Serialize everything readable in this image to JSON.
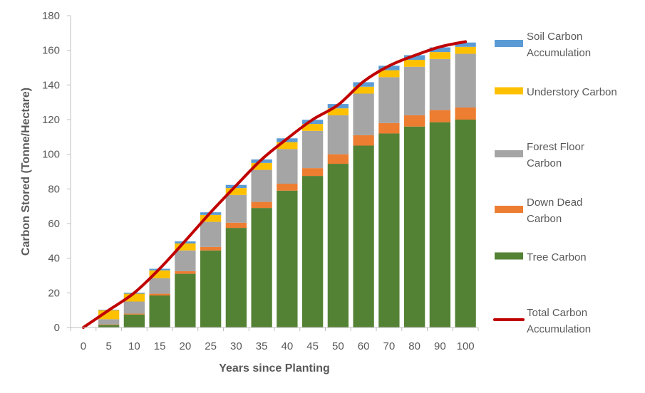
{
  "chart_data": {
    "type": "bar",
    "stacked": true,
    "title": "",
    "xlabel": "Years since Planting",
    "ylabel": "Carbon Stored (Tonne/Hectare)",
    "ylim": [
      0,
      180
    ],
    "yticks": [
      "0",
      "20",
      "40",
      "60",
      "80",
      "100",
      "120",
      "140",
      "160",
      "180"
    ],
    "categories": [
      "0",
      "5",
      "10",
      "15",
      "20",
      "25",
      "30",
      "35",
      "40",
      "45",
      "50",
      "60",
      "70",
      "80",
      "90",
      "100"
    ],
    "series": [
      {
        "name": "Tree Carbon",
        "color": "#548235",
        "values": [
          0,
          1.5,
          7.5,
          18.5,
          31,
          44.5,
          57.5,
          69,
          79,
          87.5,
          94.5,
          105,
          112,
          116,
          118.5,
          120
        ]
      },
      {
        "name": "Down Dead Carbon",
        "color": "#ED7D31",
        "values": [
          0,
          0.3,
          0.5,
          1,
          1.5,
          2,
          3,
          3.5,
          4,
          4.5,
          5.5,
          6,
          6,
          6.5,
          7,
          7
        ]
      },
      {
        "name": "Forest Floor Carbon",
        "color": "#A5A5A5",
        "values": [
          0,
          3,
          7,
          9,
          12,
          14.5,
          16,
          18.5,
          20,
          21.5,
          22.5,
          24,
          26.5,
          28,
          29.5,
          31
        ]
      },
      {
        "name": "Understory Carbon",
        "color": "#FFC000",
        "values": [
          0,
          5.2,
          4.5,
          4.5,
          4,
          4,
          4,
          4,
          4,
          4,
          4,
          4,
          4,
          4,
          4,
          4
        ]
      },
      {
        "name": "Soil Carbon Accumulation",
        "color": "#5B9BD5",
        "values": [
          0,
          0.3,
          0.6,
          0.9,
          1.2,
          1.5,
          1.8,
          2,
          2.2,
          2.4,
          2.5,
          2.6,
          2.6,
          2.7,
          2.7,
          2.5
        ]
      }
    ],
    "line_series": {
      "name": "Total Carbon Accumulation",
      "color": "#C00000",
      "values": [
        0,
        10,
        20,
        34,
        50,
        66.5,
        82,
        97,
        109,
        120,
        128.5,
        142,
        151,
        157,
        162,
        165
      ]
    },
    "legend_position": "right",
    "legend": [
      {
        "key": "soil",
        "label": "Soil Carbon Accumulation",
        "lines": [
          "Soil Carbon",
          "Accumulation"
        ],
        "color": "#5B9BD5",
        "kind": "box"
      },
      {
        "key": "understory",
        "label": "Understory Carbon",
        "lines": [
          "Understory Carbon"
        ],
        "color": "#FFC000",
        "kind": "box"
      },
      {
        "key": "floor",
        "label": "Forest Floor Carbon",
        "lines": [
          "Forest Floor",
          "Carbon"
        ],
        "color": "#A5A5A5",
        "kind": "box"
      },
      {
        "key": "downdead",
        "label": "Down Dead Carbon",
        "lines": [
          "Down Dead",
          "Carbon"
        ],
        "color": "#ED7D31",
        "kind": "box"
      },
      {
        "key": "tree",
        "label": "Tree Carbon",
        "lines": [
          "Tree Carbon"
        ],
        "color": "#548235",
        "kind": "box"
      },
      {
        "key": "total",
        "label": "Total Carbon Accumulation",
        "lines": [
          "Total Carbon",
          "Accumulation"
        ],
        "color": "#C00000",
        "kind": "line"
      }
    ]
  }
}
